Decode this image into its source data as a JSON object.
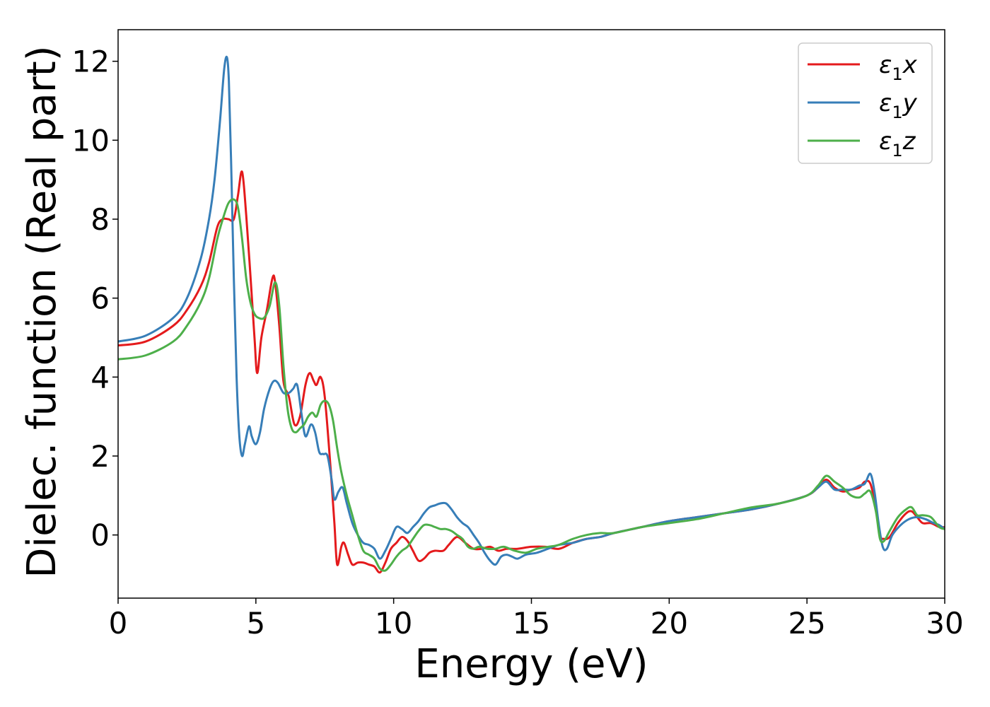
{
  "chart_data": {
    "type": "line",
    "title": "",
    "xlabel": "Energy (eV)",
    "ylabel": "Dielec. function (Real part)",
    "xlim": [
      0,
      30
    ],
    "ylim": [
      -1.6,
      12.8
    ],
    "xticks": [
      0,
      5,
      10,
      15,
      20,
      25,
      30
    ],
    "yticks": [
      0,
      2,
      4,
      6,
      8,
      10,
      12
    ],
    "grid": false,
    "legend_position": "top-right",
    "series": [
      {
        "name": "ε₁x",
        "legend_base": "ε",
        "legend_sub": "1",
        "legend_var": "x",
        "color": "#e41a1c",
        "x": [
          0,
          1,
          2,
          2.5,
          3,
          3.3,
          3.6,
          3.8,
          4.0,
          4.2,
          4.35,
          4.5,
          4.65,
          4.8,
          4.95,
          5.05,
          5.2,
          5.4,
          5.6,
          5.7,
          5.85,
          6.0,
          6.2,
          6.4,
          6.6,
          6.8,
          6.95,
          7.1,
          7.2,
          7.35,
          7.5,
          7.7,
          7.85,
          7.95,
          8.1,
          8.2,
          8.35,
          8.5,
          8.7,
          8.9,
          9.1,
          9.3,
          9.5,
          9.7,
          9.9,
          10.1,
          10.3,
          10.5,
          10.7,
          10.9,
          11.1,
          11.3,
          11.5,
          11.8,
          12.0,
          12.3,
          12.6,
          12.9,
          13.2,
          13.5,
          13.8,
          14.1,
          14.5,
          15.0,
          15.5,
          16.0,
          16.5,
          17.0,
          17.5,
          18.0,
          19.0,
          20.0,
          21.0,
          22.0,
          23.0,
          24.0,
          25.0,
          25.4,
          25.7,
          26.0,
          26.3,
          26.6,
          26.9,
          27.1,
          27.3,
          27.5,
          27.65,
          27.8,
          28.0,
          28.3,
          28.6,
          28.8,
          29.0,
          29.2,
          29.5,
          29.8,
          30.0
        ],
        "values": [
          4.8,
          4.9,
          5.3,
          5.7,
          6.3,
          6.9,
          7.8,
          8.0,
          8.0,
          8.0,
          8.6,
          9.2,
          8.1,
          6.6,
          5.0,
          4.1,
          5.0,
          5.7,
          6.5,
          6.4,
          5.3,
          3.9,
          3.5,
          2.8,
          3.0,
          3.8,
          4.1,
          3.9,
          3.8,
          4.0,
          3.5,
          1.8,
          0.3,
          -0.75,
          -0.3,
          -0.2,
          -0.5,
          -0.75,
          -0.7,
          -0.7,
          -0.75,
          -0.8,
          -0.95,
          -0.7,
          -0.35,
          -0.2,
          -0.05,
          -0.15,
          -0.4,
          -0.65,
          -0.6,
          -0.45,
          -0.4,
          -0.4,
          -0.25,
          -0.05,
          -0.2,
          -0.35,
          -0.35,
          -0.3,
          -0.4,
          -0.35,
          -0.35,
          -0.3,
          -0.3,
          -0.35,
          -0.2,
          -0.1,
          -0.05,
          0.05,
          0.2,
          0.35,
          0.45,
          0.55,
          0.65,
          0.8,
          1.0,
          1.2,
          1.4,
          1.2,
          1.1,
          1.15,
          1.2,
          1.35,
          1.3,
          0.7,
          0.0,
          -0.1,
          -0.05,
          0.3,
          0.55,
          0.6,
          0.45,
          0.3,
          0.3,
          0.2,
          0.2
        ]
      },
      {
        "name": "ε₁y",
        "legend_base": "ε",
        "legend_sub": "1",
        "legend_var": "y",
        "color": "#377eb8",
        "x": [
          0,
          1,
          2,
          2.5,
          3,
          3.3,
          3.5,
          3.7,
          3.85,
          3.95,
          4.02,
          4.1,
          4.2,
          4.3,
          4.4,
          4.5,
          4.6,
          4.75,
          4.85,
          5.0,
          5.15,
          5.3,
          5.5,
          5.65,
          5.8,
          6.0,
          6.2,
          6.35,
          6.5,
          6.65,
          6.8,
          7.0,
          7.15,
          7.3,
          7.45,
          7.6,
          7.75,
          7.85,
          8.0,
          8.15,
          8.3,
          8.5,
          8.7,
          8.9,
          9.1,
          9.3,
          9.5,
          9.7,
          9.9,
          10.1,
          10.3,
          10.5,
          10.7,
          10.9,
          11.1,
          11.3,
          11.5,
          11.7,
          11.9,
          12.1,
          12.3,
          12.5,
          12.7,
          12.9,
          13.1,
          13.3,
          13.5,
          13.7,
          13.9,
          14.1,
          14.3,
          14.5,
          14.8,
          15.2,
          15.6,
          16.0,
          16.5,
          17.0,
          17.5,
          18.0,
          19.0,
          20.0,
          21.0,
          22.0,
          23.0,
          24.0,
          25.0,
          25.4,
          25.7,
          26.0,
          26.3,
          26.6,
          26.9,
          27.1,
          27.3,
          27.45,
          27.6,
          27.75,
          27.9,
          28.1,
          28.4,
          28.7,
          29.0,
          29.3,
          29.6,
          29.8,
          30.0
        ],
        "values": [
          4.9,
          5.05,
          5.5,
          6.0,
          7.0,
          8.0,
          9.0,
          10.5,
          11.8,
          12.1,
          11.5,
          9.5,
          6.5,
          4.0,
          2.5,
          2.0,
          2.3,
          2.75,
          2.5,
          2.3,
          2.6,
          3.2,
          3.7,
          3.9,
          3.85,
          3.6,
          3.6,
          3.7,
          3.8,
          3.1,
          2.5,
          2.8,
          2.6,
          2.1,
          2.05,
          2.0,
          1.4,
          0.9,
          1.1,
          1.2,
          0.8,
          0.3,
          0.0,
          -0.2,
          -0.25,
          -0.35,
          -0.6,
          -0.4,
          -0.1,
          0.2,
          0.15,
          0.05,
          0.2,
          0.35,
          0.55,
          0.7,
          0.75,
          0.8,
          0.8,
          0.65,
          0.45,
          0.3,
          0.2,
          0.0,
          -0.2,
          -0.45,
          -0.65,
          -0.75,
          -0.55,
          -0.5,
          -0.55,
          -0.6,
          -0.5,
          -0.45,
          -0.35,
          -0.25,
          -0.2,
          -0.1,
          -0.05,
          0.05,
          0.2,
          0.35,
          0.45,
          0.55,
          0.65,
          0.8,
          1.0,
          1.2,
          1.35,
          1.15,
          1.15,
          1.15,
          1.25,
          1.3,
          1.55,
          1.1,
          0.3,
          -0.3,
          -0.35,
          0.0,
          0.25,
          0.4,
          0.45,
          0.4,
          0.3,
          0.25,
          0.15
        ]
      },
      {
        "name": "ε₁z",
        "legend_base": "ε",
        "legend_sub": "1",
        "legend_var": "z",
        "color": "#4daf4a",
        "x": [
          0,
          1,
          2,
          2.5,
          3,
          3.3,
          3.6,
          3.8,
          4.0,
          4.2,
          4.35,
          4.5,
          4.65,
          4.8,
          4.95,
          5.1,
          5.3,
          5.5,
          5.7,
          5.85,
          6.0,
          6.15,
          6.3,
          6.45,
          6.6,
          6.75,
          6.9,
          7.05,
          7.2,
          7.35,
          7.5,
          7.65,
          7.8,
          7.95,
          8.1,
          8.3,
          8.5,
          8.7,
          8.9,
          9.1,
          9.3,
          9.5,
          9.7,
          9.9,
          10.1,
          10.3,
          10.5,
          10.7,
          10.9,
          11.1,
          11.3,
          11.5,
          11.7,
          11.9,
          12.1,
          12.3,
          12.5,
          12.7,
          12.9,
          13.1,
          13.4,
          13.7,
          14.0,
          14.4,
          14.8,
          15.2,
          15.6,
          16.0,
          16.5,
          17.0,
          17.5,
          18.0,
          19.0,
          20.0,
          21.0,
          22.0,
          23.0,
          24.0,
          25.0,
          25.4,
          25.7,
          26.0,
          26.3,
          26.6,
          26.9,
          27.1,
          27.3,
          27.5,
          27.65,
          27.8,
          28.0,
          28.3,
          28.6,
          28.8,
          29.0,
          29.2,
          29.5,
          29.8,
          30.0
        ],
        "values": [
          4.45,
          4.55,
          4.9,
          5.3,
          5.9,
          6.5,
          7.5,
          8.0,
          8.4,
          8.5,
          8.3,
          7.5,
          6.5,
          5.9,
          5.6,
          5.5,
          5.5,
          5.8,
          6.4,
          5.8,
          4.3,
          3.2,
          2.7,
          2.6,
          2.7,
          2.8,
          3.0,
          3.1,
          3.0,
          3.3,
          3.4,
          3.3,
          2.9,
          2.2,
          1.6,
          1.0,
          0.5,
          0.0,
          -0.4,
          -0.5,
          -0.6,
          -0.85,
          -0.9,
          -0.75,
          -0.55,
          -0.4,
          -0.3,
          -0.1,
          0.1,
          0.25,
          0.25,
          0.2,
          0.15,
          0.15,
          0.1,
          0.0,
          -0.1,
          -0.3,
          -0.35,
          -0.3,
          -0.35,
          -0.35,
          -0.3,
          -0.4,
          -0.45,
          -0.35,
          -0.3,
          -0.25,
          -0.1,
          0.0,
          0.05,
          0.05,
          0.2,
          0.3,
          0.4,
          0.55,
          0.7,
          0.8,
          1.0,
          1.25,
          1.5,
          1.35,
          1.2,
          1.0,
          0.95,
          1.05,
          1.1,
          0.6,
          -0.1,
          -0.15,
          0.1,
          0.45,
          0.65,
          0.7,
          0.5,
          0.5,
          0.45,
          0.2,
          0.15
        ]
      }
    ]
  }
}
